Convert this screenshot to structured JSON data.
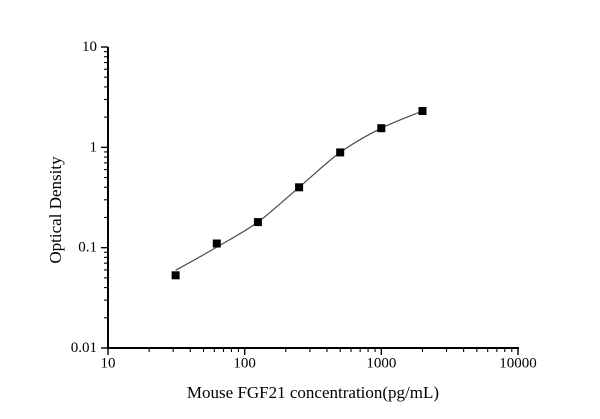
{
  "chart_data": {
    "type": "line",
    "title": "",
    "xlabel": "Mouse FGF21 concentration(pg/mL)",
    "ylabel": "Optical Density",
    "xscale": "log",
    "yscale": "log",
    "xlim": [
      10,
      10000
    ],
    "ylim": [
      0.01,
      10
    ],
    "x": [
      31.25,
      62.5,
      125,
      250,
      500,
      1000,
      2000
    ],
    "y": [
      0.053,
      0.11,
      0.18,
      0.4,
      0.89,
      1.55,
      2.3
    ],
    "x_ticks": [
      {
        "label": "10",
        "value": 10
      },
      {
        "label": "100",
        "value": 100
      },
      {
        "label": "1000",
        "value": 1000
      },
      {
        "label": "10000",
        "value": 10000
      }
    ],
    "y_ticks": [
      {
        "label": "10",
        "value": 10
      },
      {
        "label": "1",
        "value": 1
      },
      {
        "label": "0.1",
        "value": 0.1
      },
      {
        "label": "0.01",
        "value": 0.01
      }
    ],
    "marker": "filled-square",
    "marker_color": "#000000",
    "line_color": "#4a4a4a",
    "axis_color": "#000000",
    "grid": false,
    "legend": "none"
  }
}
